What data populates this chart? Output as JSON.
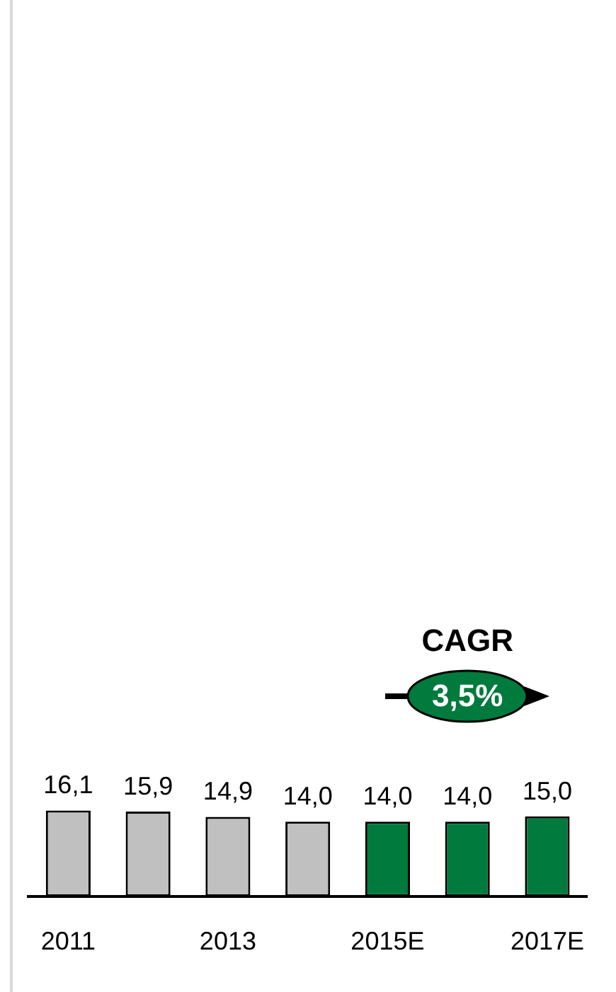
{
  "chart_data": {
    "type": "bar",
    "categories": [
      "2011",
      null,
      "2013",
      null,
      "2015E",
      null,
      "2017E"
    ],
    "values": [
      16.1,
      15.9,
      14.9,
      14.0,
      14.0,
      14.0,
      15.0
    ],
    "colors": [
      "#c0c0c0",
      "#c0c0c0",
      "#c0c0c0",
      "#c0c0c0",
      "#007a3d",
      "#007a3d",
      "#007a3d"
    ],
    "value_labels": [
      "16,1",
      "15,9",
      "14,9",
      "14,0",
      "14,0",
      "14,0",
      "15,0"
    ],
    "tick_labels": "x",
    "grid": false,
    "legend": false,
    "annotations": [
      "CAGR",
      "3,5%"
    ]
  }
}
